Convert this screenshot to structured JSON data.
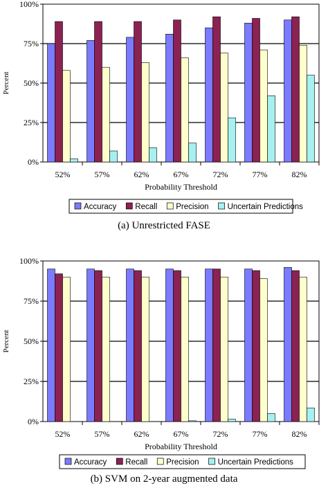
{
  "chart_data": [
    {
      "type": "bar",
      "title": "",
      "caption": "(a) Unrestricted FASE",
      "xlabel": "Probability Threshold",
      "ylabel": "Percent",
      "ylim": [
        0,
        100
      ],
      "yticks": [
        "0%",
        "25%",
        "50%",
        "75%",
        "100%"
      ],
      "grid": true,
      "legend_position": "bottom",
      "categories": [
        "52%",
        "57%",
        "62%",
        "67%",
        "72%",
        "77%",
        "82%"
      ],
      "series": [
        {
          "name": "Accuracy",
          "color": "#7b7bff",
          "values": [
            75,
            77,
            79,
            81,
            85,
            88,
            90
          ]
        },
        {
          "name": "Recall",
          "color": "#8b2252",
          "values": [
            89,
            89,
            89,
            90,
            92,
            91,
            92
          ]
        },
        {
          "name": "Precision",
          "color": "#ffffcc",
          "values": [
            58,
            60,
            63,
            66,
            69,
            71,
            74
          ]
        },
        {
          "name": "Uncertain Predictions",
          "color": "#a6f0f0",
          "values": [
            2,
            7,
            9,
            12,
            28,
            42,
            55
          ]
        }
      ]
    },
    {
      "type": "bar",
      "title": "",
      "caption": "(b) SVM on 2-year augmented data",
      "xlabel": "Probability Threshold",
      "ylabel": "Percent",
      "ylim": [
        0,
        100
      ],
      "yticks": [
        "0%",
        "25%",
        "50%",
        "75%",
        "100%"
      ],
      "grid": true,
      "legend_position": "bottom",
      "categories": [
        "52%",
        "57%",
        "62%",
        "67%",
        "72%",
        "77%",
        "82%"
      ],
      "series": [
        {
          "name": "Accuracy",
          "color": "#7b7bff",
          "values": [
            95,
            95,
            95,
            95,
            95,
            95,
            96
          ]
        },
        {
          "name": "Recall",
          "color": "#8b2252",
          "values": [
            92,
            94,
            94,
            94,
            95,
            94,
            94
          ]
        },
        {
          "name": "Precision",
          "color": "#ffffcc",
          "values": [
            90,
            90,
            90,
            90,
            90,
            89,
            90
          ]
        },
        {
          "name": "Uncertain Predictions",
          "color": "#a6f0f0",
          "values": [
            0,
            0,
            0,
            0.5,
            1.5,
            5,
            8.5
          ]
        }
      ]
    }
  ]
}
